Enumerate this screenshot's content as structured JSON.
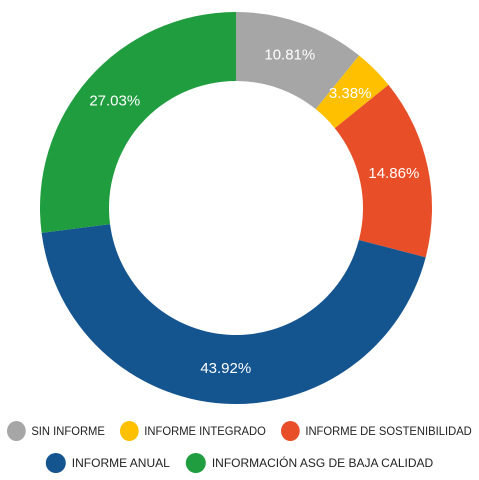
{
  "chart_data": {
    "type": "donut",
    "categories": [
      "SIN INFORME",
      "INFORME INTEGRADO",
      "INFORME DE SOSTENIBILIDAD",
      "INFORME ANUAL",
      "INFORMACIÓN ASG DE BAJA CALIDAD"
    ],
    "values": [
      10.81,
      3.38,
      14.86,
      43.92,
      27.03
    ],
    "value_labels": [
      "10.81%",
      "3.38%",
      "14.86%",
      "43.92%",
      "27.03%"
    ],
    "colors": [
      "#a6a6a6",
      "#ffc000",
      "#e84e27",
      "#14548f",
      "#1f9d3f"
    ]
  }
}
